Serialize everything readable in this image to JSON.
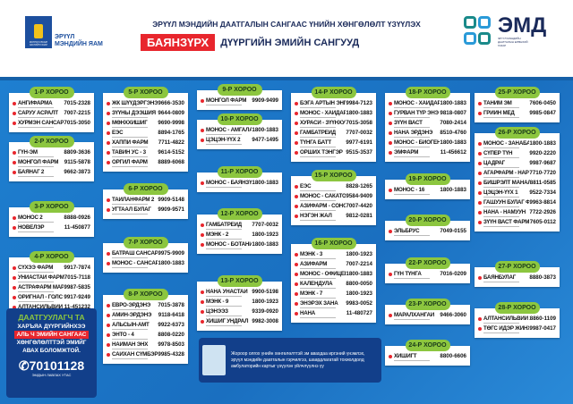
{
  "header": {
    "gov_text": "МОНГОЛ УЛСЫН ЗАСГИЙН ГАЗАР",
    "ministry_line1": "ЭРҮҮЛ",
    "ministry_line2": "МЭНДИЙН ЯАМ",
    "title": "ЭРҮҮЛ МЭНДИЙН ДААТГАЛЫН САНГААС ҮНИЙН ХӨНГӨЛӨЛТ ҮЗҮҮЛЭХ",
    "district": "БАЯНЗҮРХ",
    "subtitle": "ДҮҮРГИЙН ЭМИЙН САНГУУД",
    "emd_logo": "ЭМД",
    "emd_sub": "ЭРҮҮЛ МЭНДИЙН ДААТГАЛЫН ЕРӨНХИЙ ГАЗАР"
  },
  "colors": {
    "accent_blue": "#1a6fc0",
    "pill_green": "#8cc63f",
    "ribbon_red": "#e8262d",
    "navy": "#123f8a"
  },
  "columns": [
    [
      {
        "label": "1-Р ХОРОО",
        "items": [
          [
            "АНГИФАРМА",
            "7015-2328"
          ],
          [
            "САРУУ АСРАЛТ",
            "7007-2215"
          ],
          [
            "ХУРМЭН САНСАР",
            "7015-3050"
          ]
        ]
      },
      {
        "label": "2-Р ХОРОО",
        "items": [
          [
            "ГҮН-ЭМ",
            "8809-3636"
          ],
          [
            "МОНГОЛ ФАРМ",
            "9115-5878"
          ],
          [
            "БАЯНАГ 2",
            "9662-3873"
          ]
        ]
      },
      {
        "label": "3-Р ХОРОО",
        "items": [
          [
            "МОНОС 2",
            "8888-0926"
          ],
          [
            "НОВЕЛЭР",
            "11-450877"
          ]
        ]
      },
      {
        "label": "4-Р ХОРОО",
        "items": [
          [
            "СҮХЭЭ ФАРМ",
            "9917-7874"
          ],
          [
            "УНИАСТАЙ ФАРМ",
            "7015-7118"
          ],
          [
            "АСТРАФАРМ МАРКЕТ",
            "9987-5835"
          ],
          [
            "ОРИГНАЛ - ГОЛС",
            "9917-9249"
          ],
          [
            "АЛТАНСИЛЬВИЙ 1",
            "11-451232"
          ]
        ]
      }
    ],
    [
      {
        "label": "5-Р ХОРОО",
        "items": [
          [
            "ЖК ШҮҮДЭРГЭНЭ",
            "9666-3530"
          ],
          [
            "ЗҮҮНЫ ДЭЭШИЯ",
            "9644-0809"
          ],
          [
            "МӨНХХИШИГ",
            "9690-9998"
          ],
          [
            "ЕЭС",
            "8894-1765"
          ],
          [
            "ХАППИ ФАРМ",
            "7711-4822"
          ],
          [
            "ТАВИН УС - 3",
            "9614-5152"
          ],
          [
            "ОРГИЛ ФАРМ",
            "8889-6068"
          ]
        ]
      },
      {
        "label": "6-Р ХОРОО",
        "items": [
          [
            "ТАЙЛАНФАРМ 2",
            "9909-5148"
          ],
          [
            "УГТААЛ БУЛАГ",
            "9909-9571"
          ]
        ]
      },
      {
        "label": "7-Р ХОРОО",
        "items": [
          [
            "БАТРАШ САНСАР",
            "9975-9909"
          ],
          [
            "МОНОС - САНСАР",
            "1800-1883"
          ]
        ]
      },
      {
        "label": "8-Р ХОРОО",
        "items": [
          [
            "ЕВРО-ЭРДЭНЭ",
            "7015-3878"
          ],
          [
            "АМИН-ЭРДЭНЭ",
            "9118-6418"
          ],
          [
            "АЛЬСЫН-АМТ",
            "9922-6373"
          ],
          [
            "ЭНТО - 4",
            "8808-0220"
          ],
          [
            "НАЙМАН ЭНХ",
            "9978-8503"
          ],
          [
            "САЙХАН СҮМБЭР",
            "9985-4328"
          ]
        ]
      }
    ],
    [
      {
        "label": "9-Р ХОРОО",
        "items": [
          [
            "МОНГОЛ ФАРМ",
            "9909-9499"
          ]
        ]
      },
      {
        "label": "10-Р ХОРОО",
        "items": [
          [
            "МОНОС - АМГАЛАН",
            "1800-1883"
          ],
          [
            "ЦЭЦЭН-ҮҮХ 2",
            "9477-1495"
          ]
        ]
      },
      {
        "label": "11-Р ХОРОО",
        "items": [
          [
            "МОНОС - БАЯНЗҮРХ",
            "1800-1883"
          ]
        ]
      },
      {
        "label": "12-Р ХОРОО",
        "items": [
          [
            "ГАМБАТРЕЙД",
            "7707-0032"
          ],
          [
            "МЭНК - 2",
            "1800-1923"
          ],
          [
            "МОНОС - БОТАНИК",
            "1800-1883"
          ]
        ]
      },
      {
        "label": "13-Р ХОРОО",
        "items": [
          [
            "НАНА УНАСТАЙ",
            "9900-5198"
          ],
          [
            "МЭНК - 9",
            "1800-1923"
          ],
          [
            "ЦЭНЭЭЗ",
            "9339-0920"
          ],
          [
            "ХИШИГ УНДРАЛ",
            "9982-3008"
          ]
        ]
      }
    ],
    [
      {
        "label": "14-Р ХОРОО",
        "items": [
          [
            "БЭГА АРТЫН ЭНГЭР",
            "9984-7123"
          ],
          [
            "МОНОС - ХАЙДАРТ",
            "1800-1883"
          ],
          [
            "ХУРАСИ - ЗҮҮНХУРЭЭ",
            "7015-3058"
          ],
          [
            "ГАМБАТРЕЙД",
            "7707-0032"
          ],
          [
            "ТҮНГА БАТТ",
            "9977-6191"
          ],
          [
            "ОРШИХ ТЭНГЭР",
            "9515-3537"
          ]
        ]
      },
      {
        "label": "15-Р ХОРОО",
        "items": [
          [
            "ЕЭС",
            "8828-1265"
          ],
          [
            "МОНОС - САКАТОНИК",
            "9584-9409"
          ],
          [
            "АЗИФАРМ - СОНСОГ",
            "7007-4420"
          ],
          [
            "НЭГЭН ЖАЛ",
            "9812-0281"
          ]
        ]
      },
      {
        "label": "16-Р ХОРОО",
        "items": [
          [
            "МЭНК - 3",
            "1800-1923"
          ],
          [
            "АЗИФАРМ",
            "7007-2214"
          ],
          [
            "МОНОС - ОФИЦЕР",
            "1800-1883"
          ],
          [
            "КАЛЕНДУЛА",
            "8800-0050"
          ],
          [
            "МЭНК - 7",
            "1800-1923"
          ],
          [
            "ЭНЭРЭХ ЗАНА",
            "9983-0052"
          ],
          [
            "НАНА",
            "11-480727"
          ]
        ]
      }
    ],
    [
      {
        "label": "18-Р ХОРОО",
        "items": [
          [
            "МОНОС - ХАЙДАР",
            "1800-1883"
          ],
          [
            "ГУРВАН ТҮР ЭНЭ",
            "9818-0807"
          ],
          [
            "ЗҮҮН ВАСТ",
            "7080-2414"
          ],
          [
            "НАНА ЭРДЭНЭ",
            "8510-4760"
          ],
          [
            "МОНОС - БИОГЕН",
            "1800-1883"
          ],
          [
            "ЭМФАРМ",
            "11-456612"
          ]
        ]
      },
      {
        "label": "19-Р ХОРОО",
        "items": [
          [
            "МОНОС - 16",
            "1800-1883"
          ]
        ]
      },
      {
        "label": "20-Р ХОРОО",
        "items": [
          [
            "ЭЛЬБРУС",
            "7049-0155"
          ]
        ]
      },
      {
        "label": "22-Р ХОРОО",
        "items": [
          [
            "ГҮН ТҮНГА",
            "7016-0209"
          ]
        ]
      },
      {
        "label": "23-Р ХОРОО",
        "items": [
          [
            "МАРАЛХАНГАЙ",
            "9466-3060"
          ]
        ]
      },
      {
        "label": "24-Р ХОРОО",
        "items": [
          [
            "ХИШИГТ",
            "8800-6606"
          ]
        ]
      }
    ],
    [
      {
        "label": "25-Р ХОРОО",
        "items": [
          [
            "ТАНИМ ЭМ",
            "7606-0450"
          ],
          [
            "ГРИЙН МЕД",
            "9985-0847"
          ]
        ]
      },
      {
        "label": "26-Р ХОРОО",
        "items": [
          [
            "МОНОС - ЗАНАБАЗАР",
            "1800-1883"
          ],
          [
            "СҮПЕР ТҮН",
            "9920-2220"
          ],
          [
            "ЦАДРАГ",
            "9987-9687"
          ],
          [
            "АГАРФАРМ - НАРНАГ",
            "7710-7720"
          ],
          [
            "БИШРЭЛТ МАНАЛ",
            "8811-0585"
          ],
          [
            "ЦЭЦЭН-ҮҮХ 1",
            "9522-7334"
          ],
          [
            "ГАШУУН БУЛАГ ФАРМ",
            "9963-8814"
          ],
          [
            "НАНА - НАМУУН",
            "7722-2926"
          ],
          [
            "ЗҮҮН ВАСТ ФАРМ",
            "7605-0112"
          ]
        ]
      },
      {
        "label": "27-Р ХОРОО",
        "items": [
          [
            "БАЯНБУЛАГ",
            "8880-3873"
          ]
        ]
      },
      {
        "label": "28-Р ХОРОО",
        "items": [
          [
            "АЛТАНСИЛЬВИЙ 2",
            "8860-1109"
          ],
          [
            "ТӨГС ИДЭР ЖИНХЭН",
            "9987-0417"
          ]
        ]
      }
    ]
  ],
  "promo": {
    "line1": "ДААТГУУЛАГЧ ТА",
    "line2": "ХАРЪЯА ДҮҮРГИЙНХЭЭ",
    "line3": "АЛЬ Ч ЭМИЙН САНГААС",
    "line4": "ХӨНГӨЛӨЛТТЭЙ ЭМИЙГ",
    "line5": "АВАХ БОЛОМЖТОЙ.",
    "phone": "70101128",
    "phone_label": "ЭМДЫН ЛАВЛАХ УТАС",
    "icon": "phone-icon"
  },
  "note": {
    "text": "Жороор олгох үнийн хөнгөлөлттэй эм авахдаа иргэний үнэмлэх, эрүүл мэндийн даатгалын гэрчилгээ, шаардлагатай тохиолдолд амбулаторийн картыг үзүүлэн үйлчлүүлнэ үү"
  }
}
